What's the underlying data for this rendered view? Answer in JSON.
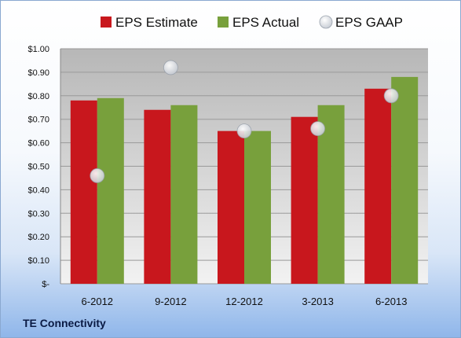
{
  "colors": {
    "estimate": "#c8171d",
    "actual": "#78a03c",
    "gaap": "#c9ced6",
    "plot_bg_top": "#b7b7b7",
    "plot_bg_bottom": "#f2f2f2"
  },
  "footer": {
    "company": "TE Connectivity"
  },
  "chart_data": {
    "type": "bar",
    "title": "",
    "xlabel": "",
    "ylabel": "",
    "categories": [
      "6-2012",
      "9-2012",
      "12-2012",
      "3-2013",
      "6-2013"
    ],
    "series": [
      {
        "name": "EPS Estimate",
        "kind": "bar",
        "color": "#c8171d",
        "values": [
          0.78,
          0.74,
          0.65,
          0.71,
          0.83
        ]
      },
      {
        "name": "EPS Actual",
        "kind": "bar",
        "color": "#78a03c",
        "values": [
          0.79,
          0.76,
          0.65,
          0.76,
          0.88
        ]
      },
      {
        "name": "EPS GAAP",
        "kind": "marker",
        "color": "#c9ced6",
        "values": [
          0.46,
          0.92,
          0.65,
          0.66,
          0.8
        ]
      }
    ],
    "ylim": [
      0,
      1.0
    ],
    "yticks": [
      0,
      0.1,
      0.2,
      0.3,
      0.4,
      0.5,
      0.6,
      0.7,
      0.8,
      0.9,
      1.0
    ],
    "ytick_labels": [
      "$-",
      "$0.10",
      "$0.20",
      "$0.30",
      "$0.40",
      "$0.50",
      "$0.60",
      "$0.70",
      "$0.80",
      "$0.90",
      "$1.00"
    ],
    "grid": true,
    "legend_position": "top"
  }
}
